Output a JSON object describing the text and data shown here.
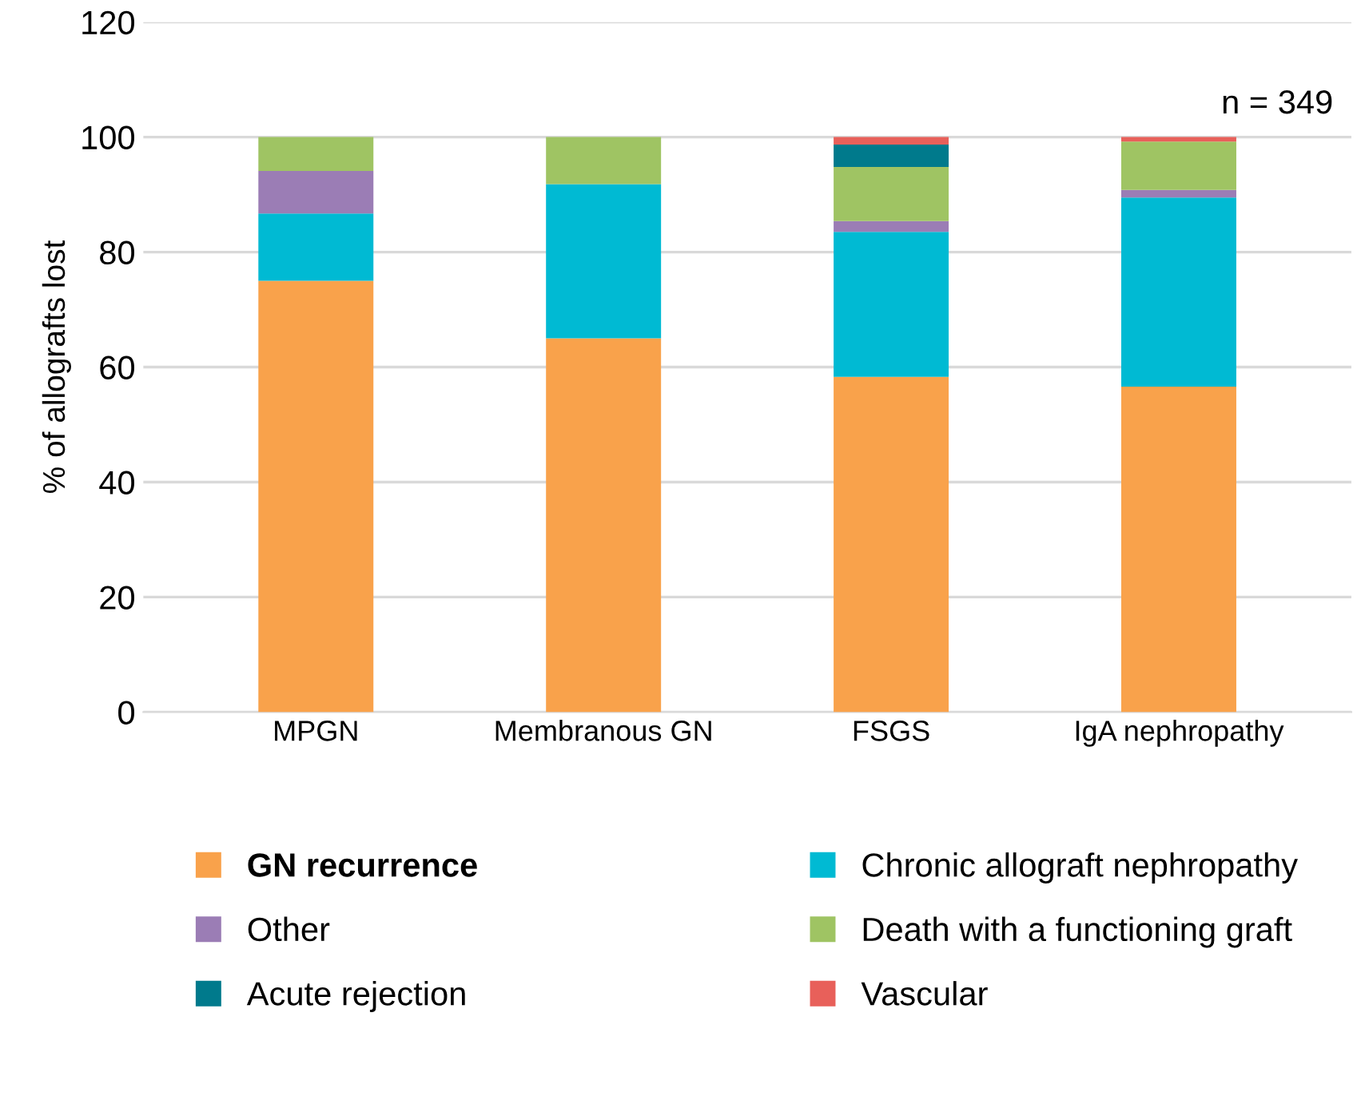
{
  "chart_data": {
    "type": "bar",
    "stacked": true,
    "ylabel": "% of allografts lost",
    "categories": [
      "MPGN",
      "Membranous GN",
      "FSGS",
      "IgA nephropathy"
    ],
    "series": [
      {
        "name": "GN recurrence",
        "color": "#f9a24b",
        "values": [
          75,
          65,
          58.3,
          56.6
        ]
      },
      {
        "name": "Chronic allograft nephropathy",
        "color": "#00bad3",
        "values": [
          11.7,
          26.8,
          25.2,
          32.9
        ]
      },
      {
        "name": "Other",
        "color": "#9b7db5",
        "values": [
          7.4,
          0,
          1.9,
          1.3
        ]
      },
      {
        "name": "Death with a functioning graft",
        "color": "#9fc463",
        "values": [
          5.9,
          8.2,
          9.4,
          8.4
        ]
      },
      {
        "name": "Acute rejection",
        "color": "#007a8c",
        "values": [
          0,
          0,
          3.9,
          0
        ]
      },
      {
        "name": "Vascular",
        "color": "#e8605a",
        "values": [
          0,
          0,
          1.3,
          0.8
        ]
      }
    ],
    "ylim": [
      0,
      120
    ],
    "yticks": [
      0,
      20,
      40,
      60,
      80,
      100,
      120
    ],
    "grid": "y",
    "legend": "bottom",
    "annotations": [
      "n = 349"
    ]
  }
}
